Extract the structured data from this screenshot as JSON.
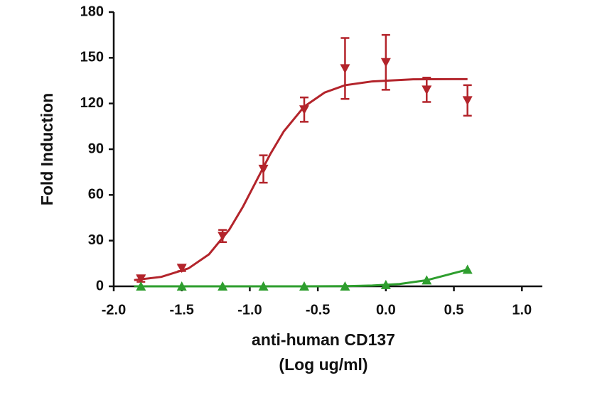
{
  "chart_data": {
    "type": "scatter",
    "ylabel": "Fold Induction",
    "xlabel_lines": [
      "anti-human CD137",
      "(Log ug/ml)"
    ],
    "xlim": [
      -2,
      1.15
    ],
    "ylim": [
      0,
      180
    ],
    "xticks": [
      {
        "value": -2,
        "label": "-2.0"
      },
      {
        "value": -1.5,
        "label": "-1.5"
      },
      {
        "value": -1,
        "label": "-1.0"
      },
      {
        "value": -0.5,
        "label": "-0.5"
      },
      {
        "value": 0,
        "label": "0.0"
      },
      {
        "value": 0.5,
        "label": "0.5"
      },
      {
        "value": 1,
        "label": "1.0"
      }
    ],
    "yticks": [
      0,
      30,
      60,
      90,
      120,
      150,
      180
    ],
    "grid": false,
    "series": [
      {
        "color": "#b3242b",
        "marker": "down-triangle",
        "x": [
          -1.8,
          -1.5,
          -1.2,
          -0.9,
          -0.6,
          -0.3,
          0,
          0.3,
          0.6
        ],
        "values": [
          5,
          12,
          33,
          77,
          116,
          143,
          147,
          129,
          122
        ],
        "errors": [
          2,
          2,
          4,
          9,
          8,
          20,
          18,
          8,
          10
        ],
        "fit_x": [
          -1.85,
          -1.65,
          -1.45,
          -1.3,
          -1.15,
          -1.05,
          -0.95,
          -0.85,
          -0.75,
          -0.6,
          -0.45,
          -0.3,
          -0.1,
          0.2,
          0.6
        ],
        "fit_values": [
          4.1,
          6.2,
          11.8,
          21,
          37.3,
          52.3,
          69.5,
          86.7,
          101.7,
          118,
          127.2,
          132,
          134.5,
          135.9,
          136
        ]
      },
      {
        "color": "#2e9e2e",
        "marker": "up-triangle",
        "x": [
          -1.8,
          -1.5,
          -1.2,
          -0.9,
          -0.6,
          -0.3,
          0,
          0.3,
          0.6
        ],
        "values": [
          0,
          0,
          0,
          0,
          0,
          0,
          1,
          4,
          11
        ],
        "fit_x": [
          -1.85,
          -1.2,
          -0.6,
          -0.3,
          -0.1,
          0.1,
          0.3,
          0.45,
          0.6
        ],
        "fit_values": [
          0,
          0,
          0,
          0.1,
          0.5,
          1.5,
          4,
          7.5,
          11
        ]
      }
    ]
  }
}
